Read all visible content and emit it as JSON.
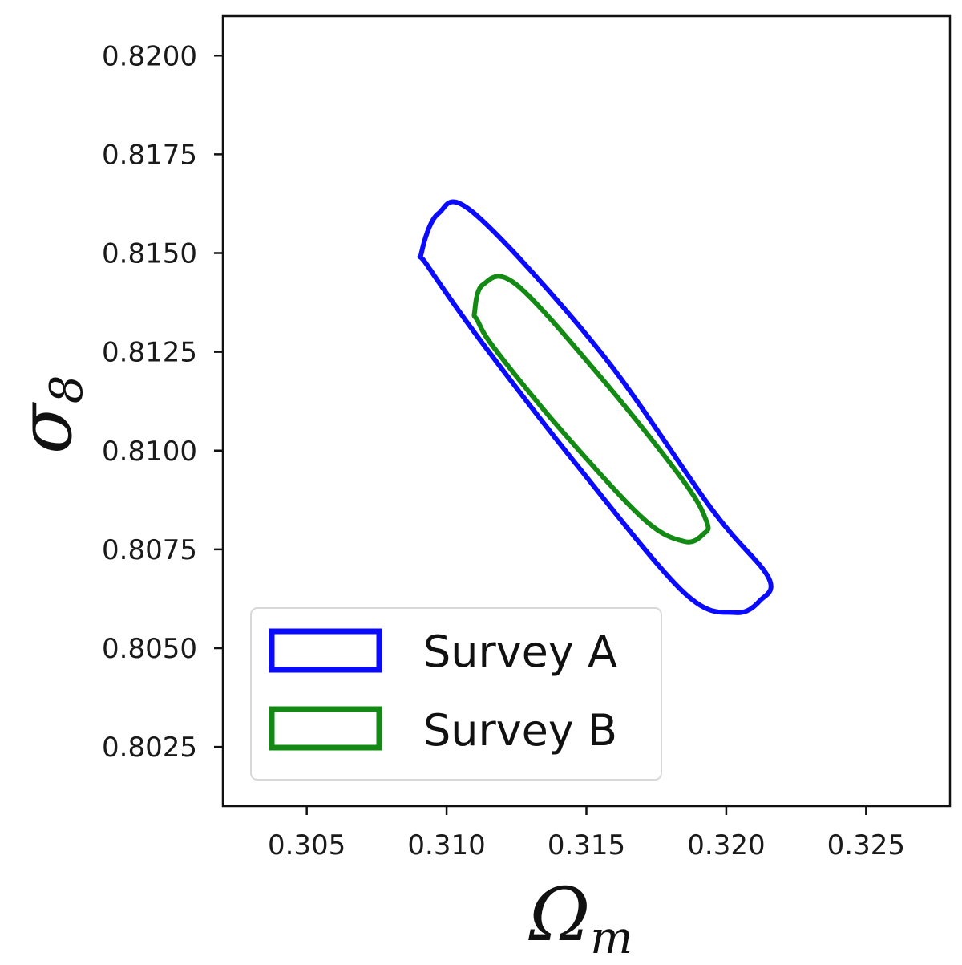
{
  "chart_data": {
    "type": "contour",
    "title": "",
    "xlabel": "Ω",
    "xlabel_sub": "m",
    "ylabel": "σ",
    "ylabel_sub": "8",
    "xlim": [
      0.302,
      0.328
    ],
    "ylim": [
      0.801,
      0.821
    ],
    "xticks": [
      0.305,
      0.31,
      0.315,
      0.32,
      0.325
    ],
    "xtick_labels": [
      "0.305",
      "0.310",
      "0.315",
      "0.320",
      "0.325"
    ],
    "yticks": [
      0.8025,
      0.805,
      0.8075,
      0.81,
      0.8125,
      0.815,
      0.8175,
      0.82
    ],
    "ytick_labels": [
      "0.8025",
      "0.8050",
      "0.8075",
      "0.8100",
      "0.8125",
      "0.8150",
      "0.8175",
      "0.8200"
    ],
    "grid": false,
    "legend_position": "lower-left",
    "series": [
      {
        "name": "Survey A",
        "color": "#0a0aff",
        "shape": "ellipse",
        "center": [
          0.3151,
          0.811
        ],
        "outline": [
          [
            0.3091,
            0.815
          ],
          [
            0.3097,
            0.816
          ],
          [
            0.311,
            0.816
          ],
          [
            0.3155,
            0.8125
          ],
          [
            0.3195,
            0.8085
          ],
          [
            0.3215,
            0.8068
          ],
          [
            0.3212,
            0.8062
          ],
          [
            0.3203,
            0.8059
          ],
          [
            0.3185,
            0.8064
          ],
          [
            0.3147,
            0.8096
          ],
          [
            0.3112,
            0.8128
          ],
          [
            0.3093,
            0.8147
          ]
        ]
      },
      {
        "name": "Survey B",
        "color": "#138a13",
        "shape": "ellipse",
        "center": [
          0.3152,
          0.811
        ],
        "outline": [
          [
            0.311,
            0.8135
          ],
          [
            0.3113,
            0.8142
          ],
          [
            0.3125,
            0.8142
          ],
          [
            0.3157,
            0.8117
          ],
          [
            0.3185,
            0.8092
          ],
          [
            0.3193,
            0.8082
          ],
          [
            0.3192,
            0.8079
          ],
          [
            0.3185,
            0.8077
          ],
          [
            0.317,
            0.8083
          ],
          [
            0.314,
            0.8106
          ],
          [
            0.3117,
            0.8126
          ],
          [
            0.3111,
            0.8133
          ]
        ]
      }
    ]
  }
}
